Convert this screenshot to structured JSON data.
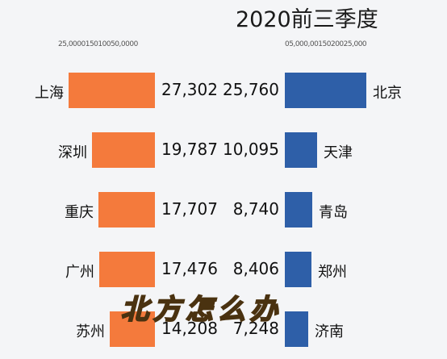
{
  "title": "2020前三季度",
  "caption": "北方怎么办",
  "colors": {
    "left_bar": "#f47a3c",
    "right_bar": "#2e5fa8"
  },
  "chart_data": [
    {
      "type": "bar",
      "orientation": "horizontal",
      "direction": "right-to-left",
      "axis_ticks_text": "25,000015010050,0000",
      "categories": [
        "上海",
        "深圳",
        "重庆",
        "广州",
        "苏州"
      ],
      "values": [
        27302,
        19787,
        17707,
        17476,
        14208
      ],
      "value_labels": [
        "27,302",
        "19,787",
        "17,707",
        "17,476",
        "14,208"
      ],
      "xlim": [
        0,
        30000
      ]
    },
    {
      "type": "bar",
      "orientation": "horizontal",
      "direction": "left-to-right",
      "axis_ticks_text": "05,000,0015020025,000",
      "categories": [
        "北京",
        "天津",
        "青岛",
        "郑州",
        "济南"
      ],
      "values": [
        25760,
        10095,
        8740,
        8406,
        7248
      ],
      "value_labels": [
        "25,760",
        "10,095",
        "8,740",
        "8,406",
        "7,248"
      ],
      "xlim": [
        0,
        30000
      ]
    }
  ]
}
